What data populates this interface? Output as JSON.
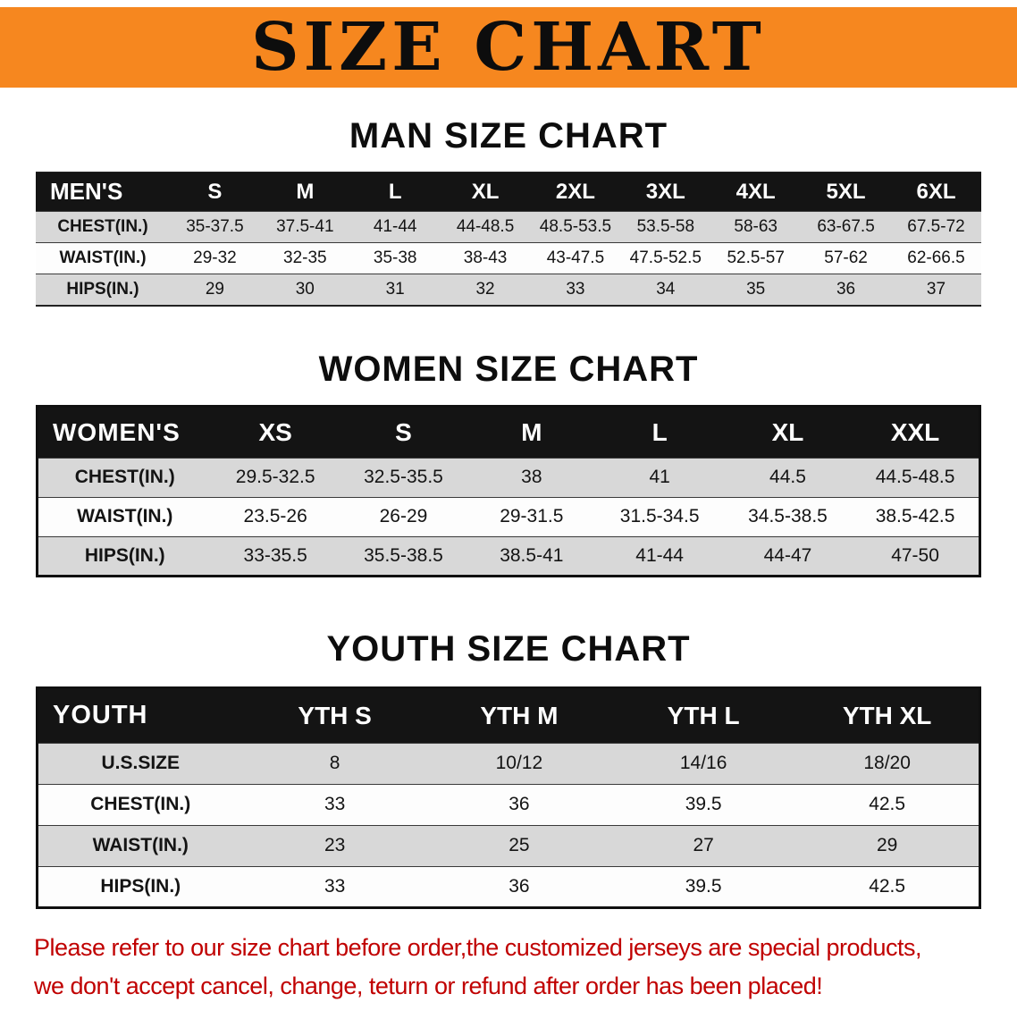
{
  "banner": {
    "title": "SIZE CHART"
  },
  "colors": {
    "banner_bg": "#f6871f",
    "table_header_bg": "#141414",
    "row_alt_gray": "#d8d8d8",
    "note_red": "#c00000"
  },
  "sections": [
    {
      "heading": "MAN SIZE CHART",
      "corner": "MEN'S",
      "columns": [
        "S",
        "M",
        "L",
        "XL",
        "2XL",
        "3XL",
        "4XL",
        "5XL",
        "6XL"
      ],
      "rows": [
        {
          "label": "CHEST(IN.)",
          "values": [
            "35-37.5",
            "37.5-41",
            "41-44",
            "44-48.5",
            "48.5-53.5",
            "53.5-58",
            "58-63",
            "63-67.5",
            "67.5-72"
          ]
        },
        {
          "label": "WAIST(IN.)",
          "values": [
            "29-32",
            "32-35",
            "35-38",
            "38-43",
            "43-47.5",
            "47.5-52.5",
            "52.5-57",
            "57-62",
            "62-66.5"
          ]
        },
        {
          "label": "HIPS(IN.)",
          "values": [
            "29",
            "30",
            "31",
            "32",
            "33",
            "34",
            "35",
            "36",
            "37"
          ]
        }
      ]
    },
    {
      "heading": "WOMEN SIZE CHART",
      "corner": "WOMEN'S",
      "columns": [
        "XS",
        "S",
        "M",
        "L",
        "XL",
        "XXL"
      ],
      "rows": [
        {
          "label": "CHEST(IN.)",
          "values": [
            "29.5-32.5",
            "32.5-35.5",
            "38",
            "41",
            "44.5",
            "44.5-48.5"
          ]
        },
        {
          "label": "WAIST(IN.)",
          "values": [
            "23.5-26",
            "26-29",
            "29-31.5",
            "31.5-34.5",
            "34.5-38.5",
            "38.5-42.5"
          ]
        },
        {
          "label": "HIPS(IN.)",
          "values": [
            "33-35.5",
            "35.5-38.5",
            "38.5-41",
            "41-44",
            "44-47",
            "47-50"
          ]
        }
      ]
    },
    {
      "heading": "YOUTH SIZE CHART",
      "corner": "YOUTH",
      "columns": [
        "YTH S",
        "YTH M",
        "YTH L",
        "YTH XL"
      ],
      "rows": [
        {
          "label": "U.S.SIZE",
          "values": [
            "8",
            "10/12",
            "14/16",
            "18/20"
          ]
        },
        {
          "label": "CHEST(IN.)",
          "values": [
            "33",
            "36",
            "39.5",
            "42.5"
          ]
        },
        {
          "label": "WAIST(IN.)",
          "values": [
            "23",
            "25",
            "27",
            "29"
          ]
        },
        {
          "label": "HIPS(IN.)",
          "values": [
            "33",
            "36",
            "39.5",
            "42.5"
          ]
        }
      ]
    }
  ],
  "note": {
    "lines": [
      "Please refer to our size chart before order,the customized jerseys are special products,",
      "we don't accept cancel, change, teturn or refund after order has been placed!"
    ]
  }
}
